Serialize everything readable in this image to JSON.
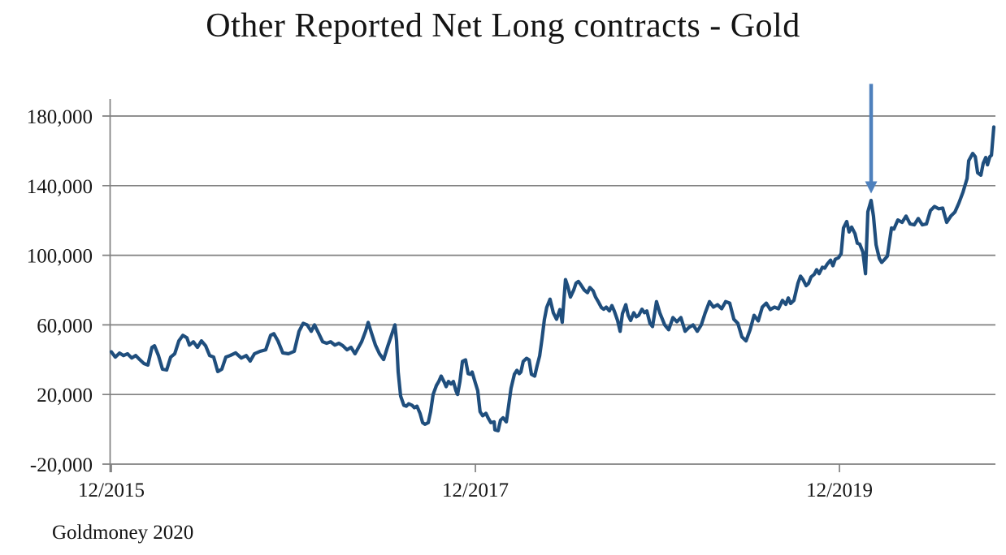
{
  "header": {
    "title": "Other Reported Net Long contracts - Gold"
  },
  "footer": {
    "source": "Goldmoney 2020"
  },
  "chart_data": {
    "type": "line",
    "title": "Other Reported Net Long contracts - Gold",
    "source": "Goldmoney 2020",
    "legend": "none",
    "grid": {
      "on": true,
      "color": "#808080"
    },
    "x_axis": {
      "range": [
        2015.958,
        2020.806
      ],
      "ticks": [
        {
          "x": 2015.958,
          "label": "12/2015"
        },
        {
          "x": 2017.958,
          "label": "12/2017"
        },
        {
          "x": 2019.958,
          "label": "12/2019"
        }
      ]
    },
    "y_axis": {
      "range": [
        -20000,
        180000
      ],
      "ticks": [
        {
          "v": -20000,
          "label": "-20,000"
        },
        {
          "v": 20000,
          "label": "20,000"
        },
        {
          "v": 60000,
          "label": "60,000"
        },
        {
          "v": 100000,
          "label": "100,000"
        },
        {
          "v": 140000,
          "label": "140,000"
        },
        {
          "v": 180000,
          "label": "180,000"
        }
      ]
    },
    "series": [
      {
        "name": "Other Reported net long contracts - Gold",
        "color": "#1f4e7d",
        "points": [
          [
            2015.958,
            44500
          ],
          [
            2015.98,
            41500
          ],
          [
            2016.003,
            43800
          ],
          [
            2016.025,
            42400
          ],
          [
            2016.047,
            43400
          ],
          [
            2016.07,
            41000
          ],
          [
            2016.092,
            42400
          ],
          [
            2016.114,
            40100
          ],
          [
            2016.137,
            37800
          ],
          [
            2016.159,
            36900
          ],
          [
            2016.181,
            47100
          ],
          [
            2016.195,
            48000
          ],
          [
            2016.217,
            42400
          ],
          [
            2016.239,
            34600
          ],
          [
            2016.262,
            34100
          ],
          [
            2016.284,
            41500
          ],
          [
            2016.306,
            43400
          ],
          [
            2016.329,
            50800
          ],
          [
            2016.351,
            54000
          ],
          [
            2016.373,
            52600
          ],
          [
            2016.387,
            48400
          ],
          [
            2016.409,
            50300
          ],
          [
            2016.431,
            47100
          ],
          [
            2016.453,
            50800
          ],
          [
            2016.476,
            48000
          ],
          [
            2016.498,
            42400
          ],
          [
            2016.52,
            41500
          ],
          [
            2016.543,
            33200
          ],
          [
            2016.565,
            34600
          ],
          [
            2016.587,
            41500
          ],
          [
            2016.61,
            42400
          ],
          [
            2016.641,
            43900
          ],
          [
            2016.672,
            41000
          ],
          [
            2016.699,
            42400
          ],
          [
            2016.721,
            39200
          ],
          [
            2016.744,
            43400
          ],
          [
            2016.775,
            44800
          ],
          [
            2016.806,
            45700
          ],
          [
            2016.833,
            54000
          ],
          [
            2016.851,
            54900
          ],
          [
            2016.873,
            50800
          ],
          [
            2016.9,
            43900
          ],
          [
            2016.931,
            43400
          ],
          [
            2016.963,
            44800
          ],
          [
            2016.989,
            56300
          ],
          [
            2017.012,
            60900
          ],
          [
            2017.034,
            60000
          ],
          [
            2017.056,
            56300
          ],
          [
            2017.074,
            60000
          ],
          [
            2017.096,
            55400
          ],
          [
            2017.119,
            50300
          ],
          [
            2017.141,
            49400
          ],
          [
            2017.163,
            50300
          ],
          [
            2017.186,
            48400
          ],
          [
            2017.208,
            49400
          ],
          [
            2017.23,
            48000
          ],
          [
            2017.253,
            45700
          ],
          [
            2017.275,
            47100
          ],
          [
            2017.297,
            43400
          ],
          [
            2017.333,
            50300
          ],
          [
            2017.355,
            56300
          ],
          [
            2017.369,
            61400
          ],
          [
            2017.387,
            55400
          ],
          [
            2017.409,
            48400
          ],
          [
            2017.431,
            43400
          ],
          [
            2017.454,
            40100
          ],
          [
            2017.476,
            47500
          ],
          [
            2017.498,
            54400
          ],
          [
            2017.516,
            60000
          ],
          [
            2017.525,
            51000
          ],
          [
            2017.534,
            33000
          ],
          [
            2017.547,
            19100
          ],
          [
            2017.565,
            13800
          ],
          [
            2017.579,
            13300
          ],
          [
            2017.592,
            14700
          ],
          [
            2017.61,
            13800
          ],
          [
            2017.623,
            12400
          ],
          [
            2017.637,
            13300
          ],
          [
            2017.654,
            9200
          ],
          [
            2017.668,
            3800
          ],
          [
            2017.681,
            2900
          ],
          [
            2017.699,
            3800
          ],
          [
            2017.712,
            10100
          ],
          [
            2017.726,
            20000
          ],
          [
            2017.744,
            25200
          ],
          [
            2017.757,
            27500
          ],
          [
            2017.77,
            30600
          ],
          [
            2017.788,
            26900
          ],
          [
            2017.797,
            24500
          ],
          [
            2017.81,
            27500
          ],
          [
            2017.824,
            26000
          ],
          [
            2017.837,
            27500
          ],
          [
            2017.851,
            22200
          ],
          [
            2017.86,
            20000
          ],
          [
            2017.873,
            27500
          ],
          [
            2017.887,
            39000
          ],
          [
            2017.904,
            39900
          ],
          [
            2017.918,
            32000
          ],
          [
            2017.931,
            31600
          ],
          [
            2017.94,
            32900
          ],
          [
            2017.953,
            28300
          ],
          [
            2017.971,
            22200
          ],
          [
            2017.984,
            10100
          ],
          [
            2017.998,
            7800
          ],
          [
            2018.016,
            9200
          ],
          [
            2018.029,
            6400
          ],
          [
            2018.043,
            3800
          ],
          [
            2018.061,
            4300
          ],
          [
            2018.065,
            -300
          ],
          [
            2018.083,
            -800
          ],
          [
            2018.096,
            5200
          ],
          [
            2018.11,
            6600
          ],
          [
            2018.128,
            4300
          ],
          [
            2018.141,
            13800
          ],
          [
            2018.154,
            23600
          ],
          [
            2018.172,
            31600
          ],
          [
            2018.186,
            33900
          ],
          [
            2018.199,
            32000
          ],
          [
            2018.208,
            32900
          ],
          [
            2018.221,
            39000
          ],
          [
            2018.239,
            40800
          ],
          [
            2018.253,
            39900
          ],
          [
            2018.266,
            31600
          ],
          [
            2018.284,
            30600
          ],
          [
            2018.297,
            36600
          ],
          [
            2018.311,
            42200
          ],
          [
            2018.324,
            52000
          ],
          [
            2018.337,
            63000
          ],
          [
            2018.35,
            70000
          ],
          [
            2018.368,
            74800
          ],
          [
            2018.386,
            67000
          ],
          [
            2018.404,
            63200
          ],
          [
            2018.422,
            68800
          ],
          [
            2018.435,
            61500
          ],
          [
            2018.453,
            86000
          ],
          [
            2018.466,
            82000
          ],
          [
            2018.48,
            76000
          ],
          [
            2018.498,
            80000
          ],
          [
            2018.511,
            84000
          ],
          [
            2018.524,
            85000
          ],
          [
            2018.538,
            83000
          ],
          [
            2018.556,
            80000
          ],
          [
            2018.574,
            78500
          ],
          [
            2018.587,
            81500
          ],
          [
            2018.605,
            79500
          ],
          [
            2018.618,
            76000
          ],
          [
            2018.632,
            73500
          ],
          [
            2018.65,
            70000
          ],
          [
            2018.663,
            69000
          ],
          [
            2018.677,
            70200
          ],
          [
            2018.694,
            68000
          ],
          [
            2018.708,
            71100
          ],
          [
            2018.721,
            68000
          ],
          [
            2018.739,
            62500
          ],
          [
            2018.753,
            56300
          ],
          [
            2018.766,
            66500
          ],
          [
            2018.784,
            71600
          ],
          [
            2018.797,
            65500
          ],
          [
            2018.811,
            62500
          ],
          [
            2018.828,
            67000
          ],
          [
            2018.842,
            64600
          ],
          [
            2018.855,
            65500
          ],
          [
            2018.873,
            69000
          ],
          [
            2018.887,
            67000
          ],
          [
            2018.9,
            68000
          ],
          [
            2018.917,
            61000
          ],
          [
            2018.931,
            59000
          ],
          [
            2018.953,
            73400
          ],
          [
            2018.971,
            67000
          ],
          [
            2018.998,
            60000
          ],
          [
            2019.02,
            57200
          ],
          [
            2019.043,
            64200
          ],
          [
            2019.065,
            61800
          ],
          [
            2019.087,
            64200
          ],
          [
            2019.11,
            56300
          ],
          [
            2019.132,
            58600
          ],
          [
            2019.154,
            60000
          ],
          [
            2019.177,
            56300
          ],
          [
            2019.199,
            60000
          ],
          [
            2019.221,
            67000
          ],
          [
            2019.244,
            73400
          ],
          [
            2019.266,
            70200
          ],
          [
            2019.288,
            71600
          ],
          [
            2019.311,
            69300
          ],
          [
            2019.333,
            73400
          ],
          [
            2019.355,
            72500
          ],
          [
            2019.378,
            63200
          ],
          [
            2019.4,
            60900
          ],
          [
            2019.422,
            53100
          ],
          [
            2019.445,
            50800
          ],
          [
            2019.467,
            57200
          ],
          [
            2019.489,
            65500
          ],
          [
            2019.512,
            62300
          ],
          [
            2019.534,
            70200
          ],
          [
            2019.556,
            72500
          ],
          [
            2019.578,
            68800
          ],
          [
            2019.601,
            70200
          ],
          [
            2019.623,
            69300
          ],
          [
            2019.645,
            74100
          ],
          [
            2019.663,
            71800
          ],
          [
            2019.677,
            75500
          ],
          [
            2019.69,
            72300
          ],
          [
            2019.708,
            74100
          ],
          [
            2019.73,
            84000
          ],
          [
            2019.744,
            88000
          ],
          [
            2019.757,
            86200
          ],
          [
            2019.775,
            82500
          ],
          [
            2019.788,
            83800
          ],
          [
            2019.802,
            87500
          ],
          [
            2019.819,
            89000
          ],
          [
            2019.833,
            91700
          ],
          [
            2019.846,
            89400
          ],
          [
            2019.864,
            93100
          ],
          [
            2019.877,
            92600
          ],
          [
            2019.891,
            94900
          ],
          [
            2019.909,
            97200
          ],
          [
            2019.922,
            94000
          ],
          [
            2019.935,
            97700
          ],
          [
            2019.953,
            98600
          ],
          [
            2019.967,
            100900
          ],
          [
            2019.98,
            115700
          ],
          [
            2019.998,
            119400
          ],
          [
            2020.011,
            113400
          ],
          [
            2020.025,
            116200
          ],
          [
            2020.043,
            112500
          ],
          [
            2020.056,
            106900
          ],
          [
            2020.069,
            106500
          ],
          [
            2020.087,
            101800
          ],
          [
            2020.101,
            89400
          ],
          [
            2020.114,
            125000
          ],
          [
            2020.132,
            131500
          ],
          [
            2020.145,
            122500
          ],
          [
            2020.159,
            106000
          ],
          [
            2020.177,
            98200
          ],
          [
            2020.19,
            95900
          ],
          [
            2020.203,
            97300
          ],
          [
            2020.221,
            99500
          ],
          [
            2020.244,
            115700
          ],
          [
            2020.257,
            115000
          ],
          [
            2020.279,
            120300
          ],
          [
            2020.302,
            118900
          ],
          [
            2020.324,
            122500
          ],
          [
            2020.346,
            118000
          ],
          [
            2020.369,
            117500
          ],
          [
            2020.391,
            121100
          ],
          [
            2020.413,
            117500
          ],
          [
            2020.436,
            118000
          ],
          [
            2020.458,
            125700
          ],
          [
            2020.48,
            128000
          ],
          [
            2020.503,
            126700
          ],
          [
            2020.525,
            127100
          ],
          [
            2020.547,
            118900
          ],
          [
            2020.57,
            122500
          ],
          [
            2020.592,
            124800
          ],
          [
            2020.614,
            130000
          ],
          [
            2020.637,
            136300
          ],
          [
            2020.659,
            144100
          ],
          [
            2020.668,
            154300
          ],
          [
            2020.69,
            158500
          ],
          [
            2020.704,
            156600
          ],
          [
            2020.717,
            147400
          ],
          [
            2020.735,
            146000
          ],
          [
            2020.748,
            152900
          ],
          [
            2020.762,
            156200
          ],
          [
            2020.771,
            152000
          ],
          [
            2020.784,
            156600
          ],
          [
            2020.793,
            157500
          ],
          [
            2020.806,
            173700
          ]
        ]
      }
    ],
    "annotations": [
      {
        "type": "arrow-down",
        "x": 2020.132,
        "tip_value": 135500,
        "tail_value": 198500,
        "color": "#4f81bd",
        "points_to": "spike peak of ~131,500 contracts in early 2020"
      }
    ]
  }
}
